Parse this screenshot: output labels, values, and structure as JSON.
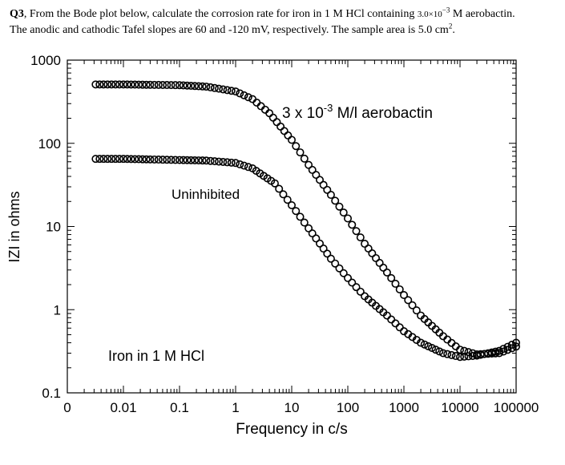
{
  "question": {
    "lead": "Q3",
    "text_a": ", From the Bode plot below, calculate the corrosion rate for iron in 1 M HCl containing ",
    "conc_base": "3.0×10",
    "conc_exp": "−3",
    "text_b": " M aerobactin.",
    "text_c": "The anodic and cathodic Tafel slopes are 60 and -120 mV, respectively. The sample area is 5.0 cm",
    "area_exp": "2",
    "text_d": "."
  },
  "chart_data": {
    "type": "scatter",
    "title": "",
    "xlabel": "Frequency in c/s",
    "ylabel": "IZI in ohms",
    "x_scale": "log",
    "y_scale": "log",
    "xlim": [
      0.001,
      100000
    ],
    "ylim": [
      0.1,
      1000
    ],
    "x_tick_labels": [
      "0",
      "0.01",
      "0.1",
      "1",
      "10",
      "100",
      "1000",
      "10000",
      "100000"
    ],
    "y_tick_labels": [
      "1000",
      "100",
      "10",
      "1",
      "0.1"
    ],
    "grid": false,
    "marker": "open-circle",
    "series": [
      {
        "name": "3 x 10-3 M/l aerobactin",
        "label_base": "3 x 10",
        "label_exp": "-3",
        "label_rest": " M/l aerobactin",
        "x": [
          0.0032,
          0.01,
          0.03,
          0.1,
          0.3,
          1,
          2,
          4,
          10,
          20,
          50,
          100,
          200,
          500,
          1000,
          2000,
          5000,
          10000,
          20000,
          50000,
          100000
        ],
        "y": [
          510,
          510,
          505,
          500,
          480,
          420,
          340,
          230,
          110,
          55,
          24,
          12.5,
          6.2,
          2.8,
          1.5,
          0.85,
          0.48,
          0.33,
          0.29,
          0.3,
          0.36
        ]
      },
      {
        "name": "Uninhibited",
        "label_base": "Uninhibited",
        "x": [
          0.0032,
          0.01,
          0.03,
          0.1,
          0.3,
          1,
          2,
          5,
          10,
          20,
          50,
          100,
          200,
          500,
          1000,
          2000,
          5000,
          10000,
          20000,
          50000,
          100000
        ],
        "y": [
          65,
          65,
          64,
          63,
          62,
          58,
          50,
          33,
          18,
          9.5,
          4.1,
          2.4,
          1.45,
          0.85,
          0.55,
          0.4,
          0.3,
          0.27,
          0.28,
          0.32,
          0.4
        ]
      }
    ],
    "annotations": [
      "Iron in 1 M HCl"
    ]
  }
}
